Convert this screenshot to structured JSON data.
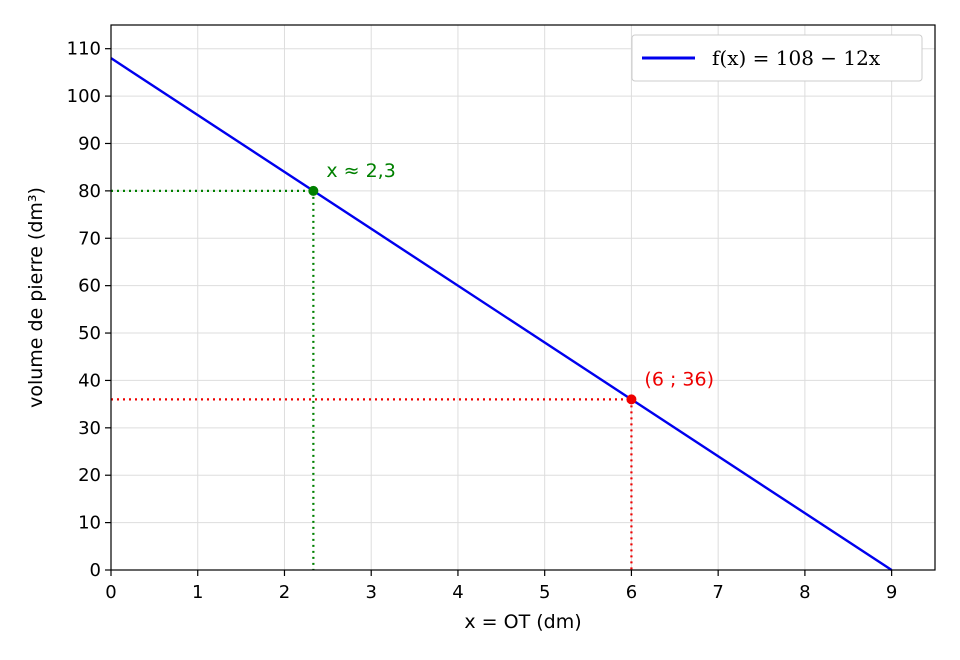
{
  "chart_data": {
    "type": "line",
    "xlabel": "x = OT (dm)",
    "ylabel": "volume de pierre (dm³)",
    "xlim": [
      0,
      9.5
    ],
    "ylim": [
      0,
      115
    ],
    "xticks": [
      0,
      1,
      2,
      3,
      4,
      5,
      6,
      7,
      8,
      9
    ],
    "yticks": [
      0,
      10,
      20,
      30,
      40,
      50,
      60,
      70,
      80,
      90,
      100,
      110
    ],
    "grid": true,
    "legend_position": "top-right",
    "series": [
      {
        "name": "f(x) = 108 − 12x",
        "color": "#0000ee",
        "x": [
          0,
          9
        ],
        "y": [
          108,
          0
        ]
      }
    ],
    "annotations": [
      {
        "label": "x ≈ 2,3",
        "x": 2.333,
        "y": 80,
        "color": "#008000"
      },
      {
        "label": "(6 ; 36)",
        "x": 6,
        "y": 36,
        "color": "#ee0000"
      }
    ]
  }
}
